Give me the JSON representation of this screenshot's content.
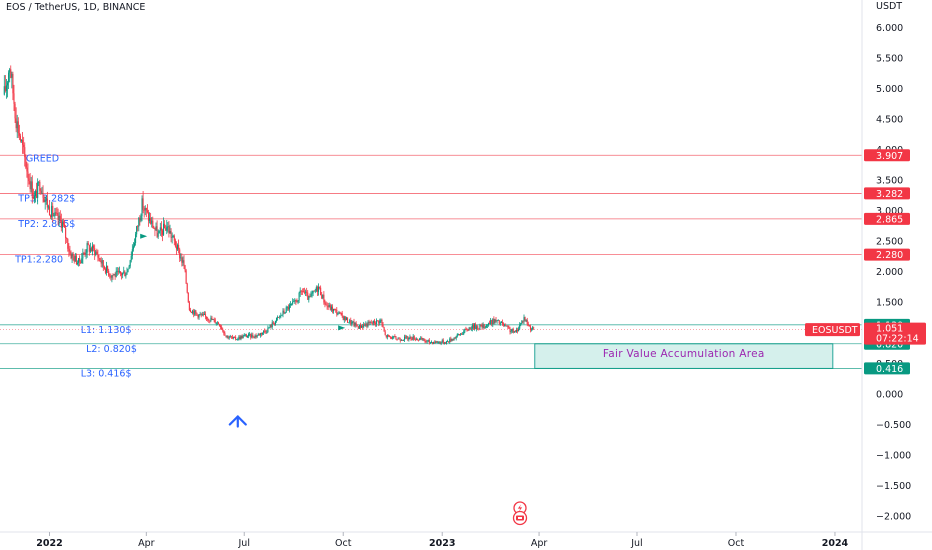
{
  "chart_data": {
    "type": "candlestick",
    "title": "EOS / TetherUS, 1D, BINANCE",
    "symbol_tag": "EOSUSDT",
    "last_price": "1.051",
    "countdown": "07:22:14",
    "y_unit": "USDT",
    "ylim": [
      -2.05,
      6.45
    ],
    "y_ticks": [
      "6.000",
      "5.500",
      "5.000",
      "4.500",
      "4.000",
      "3.500",
      "3.000",
      "2.500",
      "2.000",
      "1.500",
      "1.000",
      "0.500",
      "0.000",
      "−0.500",
      "−1.000",
      "−1.500",
      "−2.000"
    ],
    "y_tick_values": [
      6.0,
      5.5,
      5.0,
      4.5,
      4.0,
      3.5,
      3.0,
      2.5,
      2.0,
      1.5,
      1.0,
      0.5,
      0.0,
      -0.5,
      -1.0,
      -1.5,
      -2.0
    ],
    "x_ticks": [
      {
        "label": "2022",
        "date": "2022-01-01"
      },
      {
        "label": "Apr",
        "date": "2022-04-01"
      },
      {
        "label": "Jul",
        "date": "2022-07-01"
      },
      {
        "label": "Oct",
        "date": "2022-10-01"
      },
      {
        "label": "2023",
        "date": "2023-01-01"
      },
      {
        "label": "Apr",
        "date": "2023-04-01"
      },
      {
        "label": "Jul",
        "date": "2023-07-01"
      },
      {
        "label": "Oct",
        "date": "2023-10-01"
      },
      {
        "label": "2024",
        "date": "2024-01-01"
      }
    ],
    "price_path": [
      [
        "2021-11-20",
        4.9
      ],
      [
        "2021-11-25",
        5.4
      ],
      [
        "2021-12-01",
        4.5
      ],
      [
        "2021-12-06",
        4.1
      ],
      [
        "2021-12-12",
        3.6
      ],
      [
        "2021-12-18",
        3.2
      ],
      [
        "2021-12-23",
        3.45
      ],
      [
        "2021-12-31",
        3.05
      ],
      [
        "2022-01-06",
        2.9
      ],
      [
        "2022-01-13",
        2.8
      ],
      [
        "2022-01-20",
        2.3
      ],
      [
        "2022-01-28",
        2.15
      ],
      [
        "2022-02-05",
        2.4
      ],
      [
        "2022-02-12",
        2.35
      ],
      [
        "2022-02-20",
        2.1
      ],
      [
        "2022-02-27",
        1.95
      ],
      [
        "2022-03-06",
        1.95
      ],
      [
        "2022-03-14",
        2.0
      ],
      [
        "2022-03-22",
        2.6
      ],
      [
        "2022-03-28",
        3.1
      ],
      [
        "2022-04-04",
        2.85
      ],
      [
        "2022-04-12",
        2.6
      ],
      [
        "2022-04-20",
        2.75
      ],
      [
        "2022-04-28",
        2.45
      ],
      [
        "2022-05-06",
        2.1
      ],
      [
        "2022-05-11",
        1.4
      ],
      [
        "2022-05-18",
        1.3
      ],
      [
        "2022-05-28",
        1.25
      ],
      [
        "2022-06-08",
        1.15
      ],
      [
        "2022-06-14",
        0.95
      ],
      [
        "2022-06-22",
        0.9
      ],
      [
        "2022-07-02",
        0.95
      ],
      [
        "2022-07-12",
        0.95
      ],
      [
        "2022-07-22",
        1.05
      ],
      [
        "2022-08-02",
        1.25
      ],
      [
        "2022-08-10",
        1.4
      ],
      [
        "2022-08-18",
        1.5
      ],
      [
        "2022-08-24",
        1.7
      ],
      [
        "2022-08-30",
        1.55
      ],
      [
        "2022-09-08",
        1.75
      ],
      [
        "2022-09-15",
        1.45
      ],
      [
        "2022-09-24",
        1.35
      ],
      [
        "2022-10-05",
        1.2
      ],
      [
        "2022-10-15",
        1.1
      ],
      [
        "2022-10-25",
        1.15
      ],
      [
        "2022-11-05",
        1.2
      ],
      [
        "2022-11-09",
        0.95
      ],
      [
        "2022-11-20",
        0.9
      ],
      [
        "2022-12-05",
        0.92
      ],
      [
        "2022-12-20",
        0.85
      ],
      [
        "2023-01-05",
        0.85
      ],
      [
        "2023-01-15",
        0.95
      ],
      [
        "2023-01-28",
        1.1
      ],
      [
        "2023-02-08",
        1.1
      ],
      [
        "2023-02-18",
        1.2
      ],
      [
        "2023-02-25",
        1.15
      ],
      [
        "2023-03-04",
        1.05
      ],
      [
        "2023-03-10",
        1.0
      ],
      [
        "2023-03-18",
        1.25
      ],
      [
        "2023-03-23",
        1.1
      ],
      [
        "2023-03-27",
        1.05
      ]
    ],
    "levels": [
      {
        "label": "GREED",
        "value": 3.907,
        "tag": "3.907",
        "color": "#f23645",
        "label_date": "2021-12-10",
        "label_offset": 6
      },
      {
        "label": "TP3: 3.282$",
        "value": 3.282,
        "tag": "3.282",
        "color": "#f23645",
        "label_date": "2021-12-03",
        "label_offset": 8
      },
      {
        "label": "TP2: 2.865$",
        "value": 2.865,
        "tag": "2.865",
        "color": "#f23645",
        "label_date": "2021-12-03",
        "label_offset": 8
      },
      {
        "label": "TP1:2.280",
        "value": 2.28,
        "tag": "2.280",
        "color": "#f23645",
        "label_date": "2021-11-30",
        "label_offset": 8
      },
      {
        "label": "L1: 1.130$",
        "value": 1.13,
        "tag": "1.130",
        "color": "#089981",
        "label_date": "2022-01-30",
        "label_offset": 8
      },
      {
        "label": "L2: 0.820$",
        "value": 0.82,
        "tag": "0.820",
        "color": "#089981",
        "label_date": "2022-02-04",
        "label_offset": 8
      },
      {
        "label": "L3: 0.416$",
        "value": 0.416,
        "tag": "0.416",
        "color": "#089981",
        "label_date": "2022-01-30",
        "label_offset": 8
      }
    ],
    "zone": {
      "label": "Fair Value Accumulation Area",
      "x_start": "2023-03-28",
      "x_end": "2023-12-30",
      "y_top": 0.82,
      "y_bottom": 0.416,
      "fill": "#d5f0ec",
      "stroke": "#26a69a"
    },
    "colors": {
      "up": "#089981",
      "down": "#f23645",
      "background": "#ffffff",
      "axis": "#131722",
      "price_tag": "#f23645",
      "level_label": "#2962ff",
      "zone_label": "#9c27b0"
    },
    "markers": [
      {
        "name": "arrow-up-icon",
        "date": "2022-06-25",
        "value": -0.42,
        "color": "#2962ff"
      },
      {
        "name": "flag-icon",
        "date": "2022-03-30",
        "value": 2.58,
        "color": "#089981"
      },
      {
        "name": "flag-icon",
        "date": "2022-09-30",
        "value": 1.08,
        "color": "#089981"
      }
    ],
    "x_range": [
      "2021-11-16",
      "2024-02-10"
    ]
  }
}
